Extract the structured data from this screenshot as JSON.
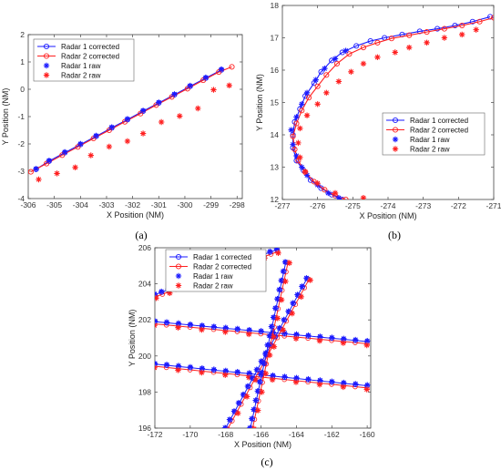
{
  "legend": [
    "Radar 1 corrected",
    "Radar 2 corrected",
    "Radar 1 raw",
    "Radar 2 raw"
  ],
  "colors": {
    "radar1": "#1a1aff",
    "radar2": "#ff2020"
  },
  "chart_data": [
    {
      "label": "(a)",
      "type": "line",
      "xlabel": "X Position (NM)",
      "ylabel": "Y Position (NM)",
      "xlim": [
        -306,
        -297.8
      ],
      "ylim": [
        -4,
        2
      ],
      "xticks": [
        -306,
        -305,
        -304,
        -303,
        -302,
        -301,
        -300,
        -299,
        -298
      ],
      "yticks": [
        -4,
        -3,
        -2,
        -1,
        0,
        1,
        2
      ],
      "legend_position": "top-left",
      "series": [
        {
          "name": "Radar 1 corrected",
          "style": "line-circle",
          "color": "#1a1aff",
          "x": [
            -305.7,
            -305.2,
            -304.6,
            -304.0,
            -303.4,
            -302.8,
            -302.2,
            -301.6,
            -301.0,
            -300.4,
            -299.8,
            -299.2,
            -298.6
          ],
          "y": [
            -2.93,
            -2.63,
            -2.32,
            -2.02,
            -1.72,
            -1.41,
            -1.11,
            -0.8,
            -0.5,
            -0.2,
            0.11,
            0.41,
            0.71
          ]
        },
        {
          "name": "Radar 2 corrected",
          "style": "line-circle",
          "color": "#ff2020",
          "x": [
            -305.9,
            -305.3,
            -304.7,
            -304.1,
            -303.5,
            -302.9,
            -302.3,
            -301.7,
            -301.1,
            -300.5,
            -299.9,
            -299.3,
            -298.7,
            -298.2
          ],
          "y": [
            -3.02,
            -2.72,
            -2.41,
            -2.11,
            -1.8,
            -1.5,
            -1.19,
            -0.89,
            -0.58,
            -0.28,
            0.02,
            0.33,
            0.63,
            0.82
          ]
        },
        {
          "name": "Radar 1 raw",
          "style": "star",
          "color": "#1a1aff",
          "x": [
            -305.7,
            -305.2,
            -304.6,
            -304.0,
            -303.4,
            -302.8,
            -302.2,
            -301.6,
            -301.0,
            -300.4,
            -299.8,
            -299.2,
            -298.6
          ],
          "y": [
            -2.91,
            -2.61,
            -2.3,
            -2.0,
            -1.7,
            -1.39,
            -1.09,
            -0.78,
            -0.48,
            -0.18,
            0.13,
            0.43,
            0.73
          ]
        },
        {
          "name": "Radar 2 raw",
          "style": "star",
          "color": "#ff2020",
          "x": [
            -305.6,
            -304.9,
            -304.2,
            -303.6,
            -302.9,
            -302.2,
            -301.6,
            -300.9,
            -300.2,
            -299.5,
            -298.9,
            -298.3
          ],
          "y": [
            -3.3,
            -3.08,
            -2.86,
            -2.42,
            -2.1,
            -1.9,
            -1.62,
            -1.2,
            -0.98,
            -0.7,
            -0.02,
            0.14
          ]
        }
      ]
    },
    {
      "label": "(b)",
      "type": "line",
      "xlabel": "X Position (NM)",
      "ylabel": "Y Position (NM)",
      "xlim": [
        -277,
        -271
      ],
      "ylim": [
        12,
        18
      ],
      "xticks": [
        -277,
        -276,
        -275,
        -274,
        -273,
        -272,
        -271
      ],
      "yticks": [
        12,
        13,
        14,
        15,
        16,
        17,
        18
      ],
      "legend_position": "right",
      "series": [
        {
          "name": "Radar 1 corrected",
          "style": "line-circle",
          "color": "#1a1aff",
          "x": [
            -275.3,
            -275.6,
            -275.9,
            -276.2,
            -276.4,
            -276.6,
            -276.7,
            -276.7,
            -276.65,
            -276.5,
            -276.35,
            -276.1,
            -275.9,
            -275.6,
            -275.3,
            -274.9,
            -274.5,
            -274.1,
            -273.6,
            -273.1,
            -272.6,
            -272.1,
            -271.6,
            -271.1
          ],
          "y": [
            12.0,
            12.15,
            12.35,
            12.6,
            12.9,
            13.2,
            13.6,
            14.0,
            14.4,
            14.8,
            15.2,
            15.6,
            15.95,
            16.3,
            16.55,
            16.75,
            16.9,
            17.0,
            17.1,
            17.2,
            17.28,
            17.38,
            17.5,
            17.65
          ]
        },
        {
          "name": "Radar 2 corrected",
          "style": "line-circle",
          "color": "#ff2020",
          "x": [
            -275.2,
            -275.5,
            -275.8,
            -276.1,
            -276.35,
            -276.55,
            -276.65,
            -276.7,
            -276.6,
            -276.45,
            -276.25,
            -276.0,
            -275.75,
            -275.45,
            -275.1,
            -274.7,
            -274.3,
            -273.9,
            -273.4,
            -272.9,
            -272.4,
            -271.9,
            -271.4,
            -271.0
          ],
          "y": [
            12.0,
            12.12,
            12.3,
            12.55,
            12.85,
            13.2,
            13.55,
            13.95,
            14.35,
            14.75,
            15.15,
            15.5,
            15.85,
            16.2,
            16.5,
            16.7,
            16.85,
            16.98,
            17.08,
            17.18,
            17.28,
            17.38,
            17.5,
            17.62
          ]
        },
        {
          "name": "Radar 1 raw",
          "style": "star",
          "color": "#1a1aff",
          "x": [
            -275.4,
            -275.7,
            -276.0,
            -276.3,
            -276.45,
            -276.6,
            -276.7,
            -276.75,
            -276.6,
            -276.45,
            -276.3,
            -276.05,
            -275.8,
            -275.5,
            -275.2
          ],
          "y": [
            12.05,
            12.2,
            12.45,
            12.75,
            13.0,
            13.35,
            13.7,
            14.15,
            14.55,
            14.95,
            15.3,
            15.7,
            16.05,
            16.35,
            16.6
          ]
        },
        {
          "name": "Radar 2 raw",
          "style": "star",
          "color": "#ff2020",
          "x": [
            -274.7,
            -275.5,
            -276.0,
            -276.35,
            -276.5,
            -276.55,
            -276.5,
            -276.3,
            -276.0,
            -275.75,
            -275.4,
            -275.05,
            -274.7,
            -274.3,
            -273.8,
            -273.4,
            -272.9,
            -272.4,
            -271.9,
            -271.5
          ],
          "y": [
            12.05,
            12.2,
            12.5,
            12.85,
            13.3,
            13.75,
            14.2,
            14.6,
            14.95,
            15.3,
            15.65,
            15.95,
            16.2,
            16.4,
            16.55,
            16.7,
            16.85,
            17.0,
            17.1,
            17.25
          ]
        }
      ]
    },
    {
      "label": "(c)",
      "type": "line",
      "xlabel": "X Position (NM)",
      "ylabel": "Y Position (NM)",
      "xlim": [
        -172,
        -159.8
      ],
      "ylim": [
        196,
        206
      ],
      "xticks": [
        -172,
        -170,
        -168,
        -166,
        -164,
        -162,
        -160
      ],
      "yticks": [
        196,
        198,
        200,
        202,
        204,
        206
      ],
      "legend_position": "top-left",
      "tracks": [
        {
          "x": [
            -172,
            -160
          ],
          "y": [
            201.9,
            200.8
          ]
        },
        {
          "x": [
            -172,
            -160
          ],
          "y": [
            199.55,
            198.35
          ]
        },
        {
          "x": [
            -168,
            -163.4
          ],
          "y": [
            196,
            204.3
          ]
        },
        {
          "x": [
            -166.6,
            -164.6
          ],
          "y": [
            196,
            205.2
          ]
        },
        {
          "x": [
            -172,
            -165.1
          ],
          "y": [
            203.4,
            205.9
          ]
        }
      ]
    }
  ]
}
